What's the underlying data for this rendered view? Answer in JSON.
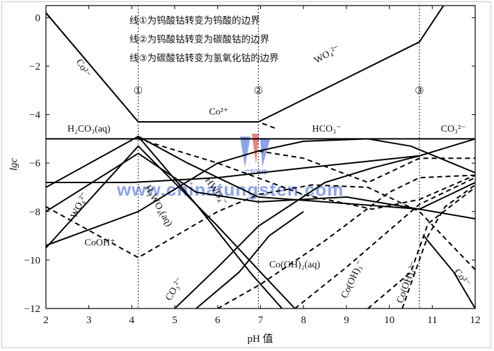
{
  "chart_data": {
    "type": "line",
    "xlabel": "pH 值",
    "ylabel": "lgc",
    "xlim": [
      2,
      12
    ],
    "ylim": [
      -12,
      0.5
    ],
    "x_ticks": [
      2,
      3,
      4,
      5,
      6,
      7,
      8,
      9,
      10,
      11,
      12
    ],
    "y_ticks": [
      0,
      -2,
      -4,
      -6,
      -8,
      -10,
      -12
    ],
    "legend_lines": [
      "线①为钨酸钴转变为钨酸的边界",
      "线②为钨酸钴转变为碳酸钴的边界",
      "线③为碳酸钴转变为氢氧化钴的边界"
    ],
    "boundaries": [
      {
        "marker": "①",
        "x": 4.15
      },
      {
        "marker": "②",
        "x": 6.95
      },
      {
        "marker": "③",
        "x": 10.7
      }
    ],
    "series": [
      {
        "points": [
          [
            2,
            -5.0
          ],
          [
            12,
            -5.0
          ]
        ],
        "style": "solid"
      },
      {
        "points": [
          [
            2,
            0.2
          ],
          [
            4.15,
            -4.3
          ],
          [
            6.95,
            -4.3
          ],
          [
            10.7,
            -1.0
          ],
          [
            11.3,
            0.6
          ]
        ],
        "style": "solid"
      },
      {
        "points": [
          [
            2,
            0.2
          ],
          [
            4.15,
            -4.3
          ],
          [
            6.95,
            -4.3
          ],
          [
            7.4,
            -4.6
          ]
        ],
        "style": "dashed"
      },
      {
        "points": [
          [
            2,
            -6.8
          ],
          [
            4.0,
            -6.8
          ],
          [
            6.0,
            -6.6
          ],
          [
            8.0,
            -6.2
          ],
          [
            10.7,
            -5.7
          ],
          [
            12,
            -5.0
          ]
        ],
        "style": "solid"
      },
      {
        "points": [
          [
            2,
            -9.4
          ],
          [
            4.15,
            -8.0
          ],
          [
            6.0,
            -6.0
          ],
          [
            6.95,
            -5.5
          ],
          [
            8.0,
            -5.1
          ],
          [
            9.5,
            -5.0
          ],
          [
            10.5,
            -5.3
          ],
          [
            12,
            -6.4
          ]
        ],
        "style": "solid"
      },
      {
        "points": [
          [
            2,
            -7.0
          ],
          [
            4.15,
            -4.9
          ],
          [
            5.3,
            -6.0
          ],
          [
            6.95,
            -7.4
          ],
          [
            8.5,
            -7.6
          ],
          [
            10.7,
            -7.9
          ],
          [
            12,
            -6.8
          ]
        ],
        "style": "solid"
      },
      {
        "points": [
          [
            2,
            -9.5
          ],
          [
            4.15,
            -5.3
          ],
          [
            6.0,
            -8.6
          ],
          [
            7.0,
            -10.5
          ],
          [
            7.8,
            -12.0
          ]
        ],
        "style": "solid"
      },
      {
        "points": [
          [
            2,
            -8.0
          ],
          [
            4.15,
            -5.6
          ],
          [
            5.5,
            -7.2
          ],
          [
            6.95,
            -7.6
          ],
          [
            9.0,
            -7.4
          ],
          [
            10.7,
            -7.9
          ],
          [
            12,
            -8.3
          ]
        ],
        "style": "solid"
      },
      {
        "points": [
          [
            4.15,
            -4.9
          ],
          [
            5.5,
            -7.7
          ],
          [
            6.8,
            -10.6
          ],
          [
            7.5,
            -12.0
          ]
        ],
        "style": "solid"
      },
      {
        "points": [
          [
            2,
            -7.8
          ],
          [
            4.15,
            -9.9
          ],
          [
            6.0,
            -8.0
          ],
          [
            6.95,
            -7.3
          ],
          [
            8.2,
            -6.9
          ],
          [
            9.5,
            -7.0
          ],
          [
            10.7,
            -8.0
          ],
          [
            12,
            -10.4
          ]
        ],
        "style": "dashed"
      },
      {
        "points": [
          [
            6.95,
            -5.5
          ],
          [
            8.0,
            -5.8
          ],
          [
            9.5,
            -6.8
          ],
          [
            10.7,
            -5.8
          ],
          [
            12,
            -5.8
          ]
        ],
        "style": "dashed"
      },
      {
        "points": [
          [
            4.15,
            -5.0
          ],
          [
            6.0,
            -6.0
          ],
          [
            8.0,
            -7.3
          ],
          [
            9.6,
            -7.9
          ],
          [
            10.7,
            -7.5
          ],
          [
            12,
            -6.5
          ]
        ],
        "style": "dashed"
      },
      {
        "points": [
          [
            6.0,
            -12.0
          ],
          [
            7.0,
            -11.0
          ],
          [
            8.5,
            -9.2
          ],
          [
            10.0,
            -7.2
          ],
          [
            10.7,
            -6.6
          ],
          [
            12,
            -6.5
          ]
        ],
        "style": "dashed"
      },
      {
        "points": [
          [
            5.0,
            -12.0
          ],
          [
            6.0,
            -10.3
          ],
          [
            6.95,
            -8.6
          ],
          [
            8.5,
            -6.8
          ],
          [
            9.6,
            -6.2
          ],
          [
            10.7,
            -5.7
          ]
        ],
        "style": "solid"
      },
      {
        "points": [
          [
            7.8,
            -12.0
          ],
          [
            9.0,
            -10.3
          ],
          [
            10.7,
            -7.7
          ],
          [
            12,
            -6.6
          ]
        ],
        "style": "dashed"
      },
      {
        "points": [
          [
            9.5,
            -12.0
          ],
          [
            10.5,
            -10.5
          ],
          [
            10.9,
            -8.5
          ],
          [
            12,
            -7.0
          ]
        ],
        "style": "dashed"
      },
      {
        "points": [
          [
            10.3,
            -12.0
          ],
          [
            10.9,
            -9.0
          ],
          [
            11.3,
            -7.8
          ],
          [
            12,
            -6.9
          ]
        ],
        "style": "dashed"
      },
      {
        "points": [
          [
            10.8,
            -9.0
          ],
          [
            11.5,
            -10.5
          ],
          [
            12,
            -12.0
          ]
        ],
        "style": "solid"
      },
      {
        "points": [
          [
            5.5,
            -12.0
          ],
          [
            6.5,
            -10.5
          ],
          [
            7.2,
            -9.0
          ],
          [
            8.0,
            -8.0
          ]
        ],
        "style": "solid"
      }
    ],
    "annotations": [
      {
        "text": "Co²⁻",
        "x": 2.7,
        "y": -1.8,
        "rotate": 60
      },
      {
        "text": "Co²⁺",
        "x": 5.8,
        "y": -4.0,
        "rotate": 0
      },
      {
        "text": "WO₄²⁻",
        "x": 8.3,
        "y": -1.9,
        "rotate": -30
      },
      {
        "text": "H₂CO₃(aq)",
        "x": 2.5,
        "y": -4.7,
        "rotate": 0
      },
      {
        "text": "HCO₃⁻",
        "x": 8.2,
        "y": -4.7,
        "rotate": 0
      },
      {
        "text": "CO₃²⁻",
        "x": 11.2,
        "y": -4.7,
        "rotate": 0
      },
      {
        "text": "WO₄²⁻",
        "x": 2.7,
        "y": -8.3,
        "rotate": -65
      },
      {
        "text": "CoOH⁺",
        "x": 2.9,
        "y": -9.4,
        "rotate": 0
      },
      {
        "text": "H₂WO₄(aq)",
        "x": 4.3,
        "y": -7.0,
        "rotate": 60
      },
      {
        "text": "HWO₄⁻",
        "x": 5.7,
        "y": -6.7,
        "rotate": 55
      },
      {
        "text": "CO₃²⁻",
        "x": 4.9,
        "y": -11.7,
        "rotate": -60
      },
      {
        "text": "Co(OH)₂(aq)",
        "x": 7.2,
        "y": -10.3,
        "rotate": 0
      },
      {
        "text": "Co(OH)₃⁻",
        "x": 9.0,
        "y": -11.6,
        "rotate": -65
      },
      {
        "text": "Co(OH)₄²⁻",
        "x": 10.3,
        "y": -11.8,
        "rotate": -70
      },
      {
        "text": "Co²⁻",
        "x": 11.5,
        "y": -10.5,
        "rotate": 50
      }
    ],
    "watermark": {
      "text": "www.chinatungsten.com",
      "logo_text": "CTOMS",
      "colors": {
        "primary": "#2f58d8",
        "accent": "#e23b3b"
      }
    }
  }
}
